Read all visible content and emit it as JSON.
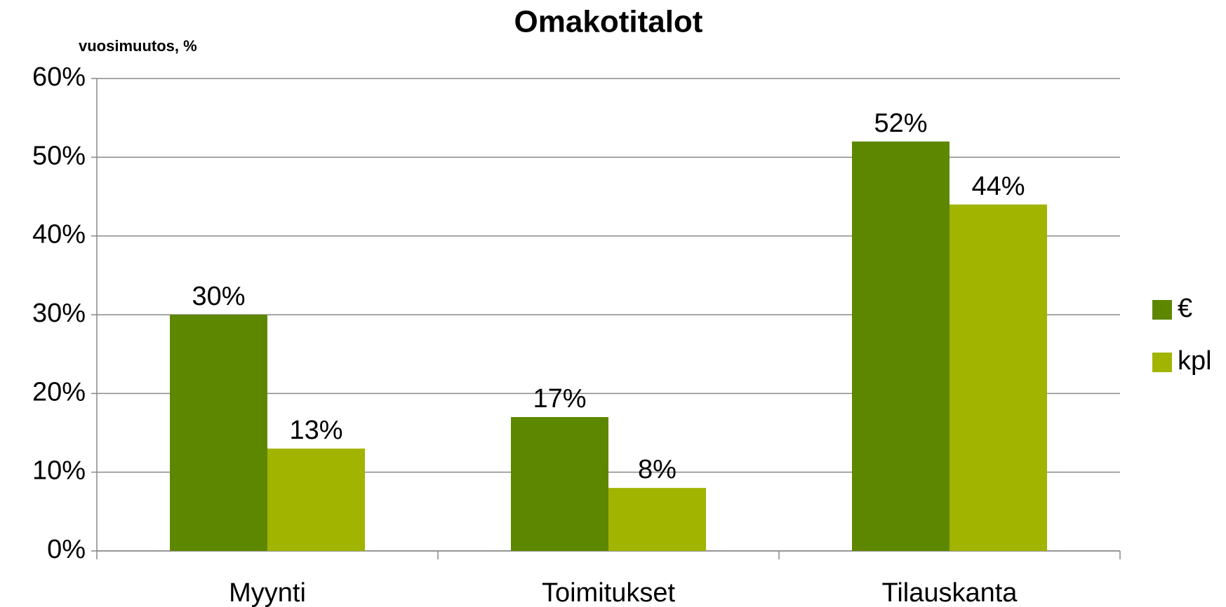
{
  "chart_data": {
    "type": "bar",
    "title": "Omakotitalot",
    "y_label": "vuosimuutos, %",
    "categories": [
      "Myynti",
      "Toimitukset",
      "Tilauskanta"
    ],
    "series": [
      {
        "name": "€",
        "color": "#5e8700",
        "values": [
          30,
          17,
          52
        ],
        "value_labels": [
          "30%",
          "17%",
          "52%"
        ]
      },
      {
        "name": "kpl",
        "color": "#a0b400",
        "values": [
          13,
          8,
          44
        ],
        "value_labels": [
          "13%",
          "8%",
          "44%"
        ]
      }
    ],
    "ylim": [
      0,
      60
    ],
    "yticks": [
      {
        "value": 0,
        "label": "0%"
      },
      {
        "value": 10,
        "label": "10%"
      },
      {
        "value": 20,
        "label": "20%"
      },
      {
        "value": 30,
        "label": "30%"
      },
      {
        "value": 40,
        "label": "40%"
      },
      {
        "value": 50,
        "label": "50%"
      },
      {
        "value": 60,
        "label": "60%"
      }
    ],
    "grid": true,
    "legend": "right"
  }
}
